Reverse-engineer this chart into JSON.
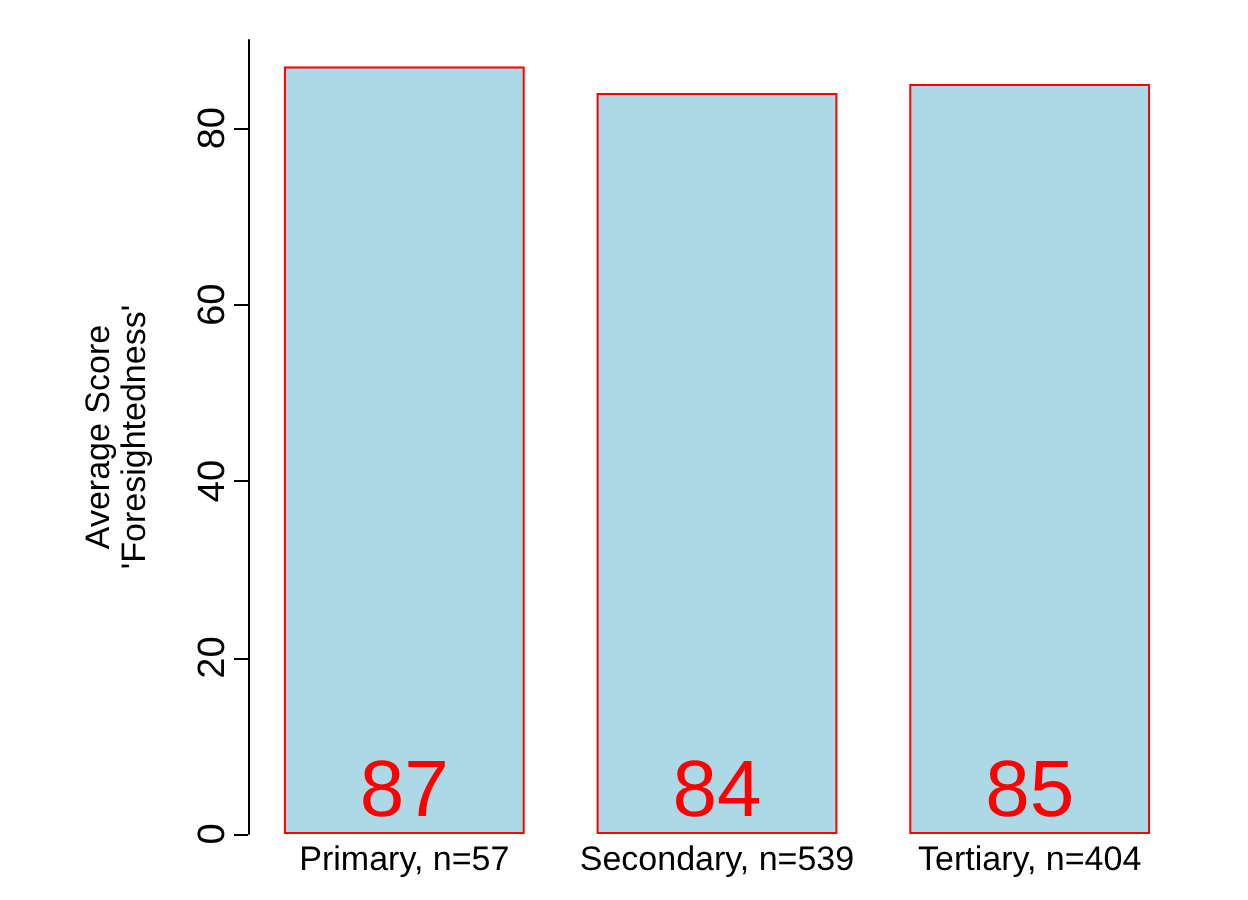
{
  "chart_data": {
    "type": "bar",
    "ylabel": "Average Score\n'Foresightedness'",
    "categories": [
      "Primary, n=57",
      "Secondary, n=539",
      "Tertiary, n=404"
    ],
    "series": [
      {
        "color": "#add8e6",
        "values": [
          87,
          84,
          85
        ]
      }
    ],
    "ylim": [
      0,
      90
    ],
    "yticks": [
      0,
      20,
      40,
      60,
      80
    ],
    "grid": false,
    "data_labels": true
  }
}
